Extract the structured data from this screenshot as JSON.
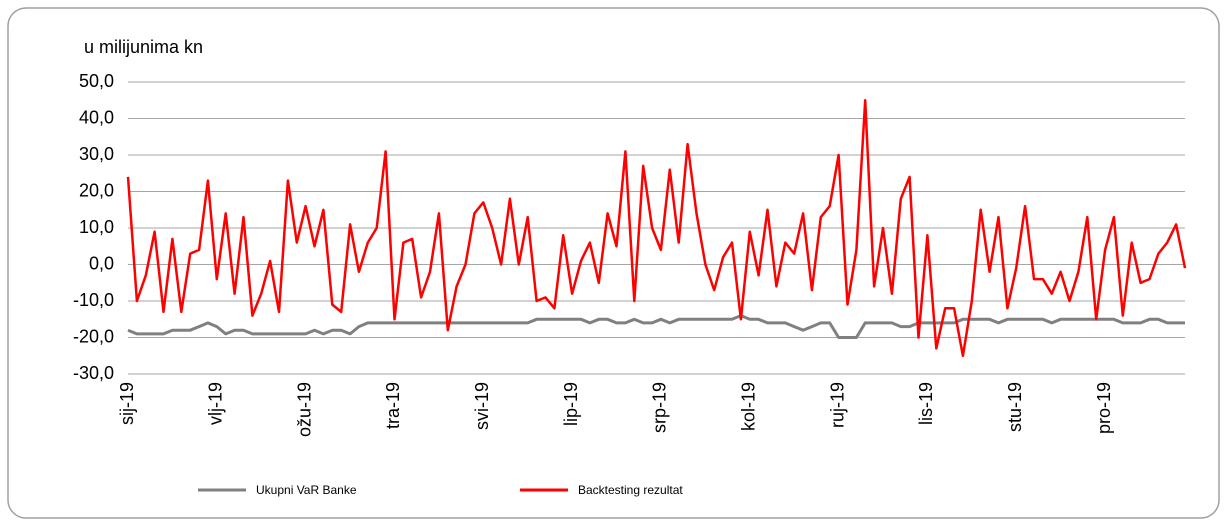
{
  "chart_data": {
    "type": "line",
    "ylabel": "u milijunima kn",
    "categories": [
      "sij-19",
      null,
      null,
      null,
      null,
      null,
      null,
      null,
      null,
      null,
      "vlj-19",
      null,
      null,
      null,
      null,
      null,
      null,
      null,
      null,
      null,
      "ožu-19",
      null,
      null,
      null,
      null,
      null,
      null,
      null,
      null,
      null,
      "tra-19",
      null,
      null,
      null,
      null,
      null,
      null,
      null,
      null,
      null,
      "svi-19",
      null,
      null,
      null,
      null,
      null,
      null,
      null,
      null,
      null,
      "lip-19",
      null,
      null,
      null,
      null,
      null,
      null,
      null,
      null,
      null,
      "srp-19",
      null,
      null,
      null,
      null,
      null,
      null,
      null,
      null,
      null,
      "kol-19",
      null,
      null,
      null,
      null,
      null,
      null,
      null,
      null,
      null,
      "ruj-19",
      null,
      null,
      null,
      null,
      null,
      null,
      null,
      null,
      null,
      "lis-19",
      null,
      null,
      null,
      null,
      null,
      null,
      null,
      null,
      null,
      "stu-19",
      null,
      null,
      null,
      null,
      null,
      null,
      null,
      null,
      null,
      "pro-19",
      null,
      null,
      null,
      null,
      null,
      null,
      null,
      null,
      null
    ],
    "series": [
      {
        "name": "Ukupni VaR Banke",
        "color": "#808080",
        "values": [
          -18,
          -19,
          -19,
          -19,
          -19,
          -18,
          -18,
          -18,
          -17,
          -16,
          -17,
          -19,
          -18,
          -18,
          -19,
          -19,
          -19,
          -19,
          -19,
          -19,
          -19,
          -18,
          -19,
          -18,
          -18,
          -19,
          -17,
          -16,
          -16,
          -16,
          -16,
          -16,
          -16,
          -16,
          -16,
          -16,
          -16,
          -16,
          -16,
          -16,
          -16,
          -16,
          -16,
          -16,
          -16,
          -16,
          -15,
          -15,
          -15,
          -15,
          -15,
          -15,
          -16,
          -15,
          -15,
          -16,
          -16,
          -15,
          -16,
          -16,
          -15,
          -16,
          -15,
          -15,
          -15,
          -15,
          -15,
          -15,
          -15,
          -14,
          -15,
          -15,
          -16,
          -16,
          -16,
          -17,
          -18,
          -17,
          -16,
          -16,
          -20,
          -20,
          -20,
          -16,
          -16,
          -16,
          -16,
          -17,
          -17,
          -16,
          -16,
          -16,
          -16,
          -16,
          -15,
          -15,
          -15,
          -15,
          -16,
          -15,
          -15,
          -15,
          -15,
          -15,
          -16,
          -15,
          -15,
          -15,
          -15,
          -15,
          -15,
          -15,
          -16,
          -16,
          -16,
          -15,
          -15,
          -16,
          -16,
          -16
        ]
      },
      {
        "name": "Backtesting rezultat",
        "color": "#ff0000",
        "values": [
          24,
          -10,
          -3,
          9,
          -13,
          7,
          -13,
          3,
          4,
          23,
          -4,
          14,
          -8,
          13,
          -14,
          -8,
          1,
          -13,
          23,
          6,
          16,
          5,
          15,
          -11,
          -13,
          11,
          -2,
          6,
          10,
          31,
          -15,
          6,
          7,
          -9,
          -2,
          14,
          -18,
          -6,
          0,
          14,
          17,
          10,
          0,
          18,
          0,
          13,
          -10,
          -9,
          -12,
          8,
          -8,
          1,
          6,
          -5,
          14,
          5,
          31,
          -10,
          27,
          10,
          4,
          26,
          6,
          33,
          14,
          0,
          -7,
          2,
          6,
          -15,
          9,
          -3,
          15,
          -6,
          6,
          3,
          14,
          -7,
          13,
          16,
          30,
          -11,
          4,
          45,
          -6,
          10,
          -8,
          18,
          24,
          -20,
          8,
          -23,
          -12,
          -12,
          -25,
          -10,
          15,
          -2,
          13,
          -12,
          -1,
          16,
          -4,
          -4,
          -8,
          -2,
          -10,
          -2,
          13,
          -15,
          4,
          13,
          -14,
          6,
          -5,
          -4,
          3,
          6,
          11,
          -1
        ]
      }
    ],
    "ylim": [
      -30,
      50
    ],
    "yticks": [
      {
        "value": -30,
        "label": "-30,0"
      },
      {
        "value": -20,
        "label": "-20,0"
      },
      {
        "value": -10,
        "label": "-10,0"
      },
      {
        "value": 0,
        "label": "0,0"
      },
      {
        "value": 10,
        "label": "10,0"
      },
      {
        "value": 20,
        "label": "20,0"
      },
      {
        "value": 30,
        "label": "30,0"
      },
      {
        "value": 40,
        "label": "40,0"
      },
      {
        "value": 50,
        "label": "50,0"
      }
    ],
    "grid": true,
    "legend": "bottom"
  }
}
